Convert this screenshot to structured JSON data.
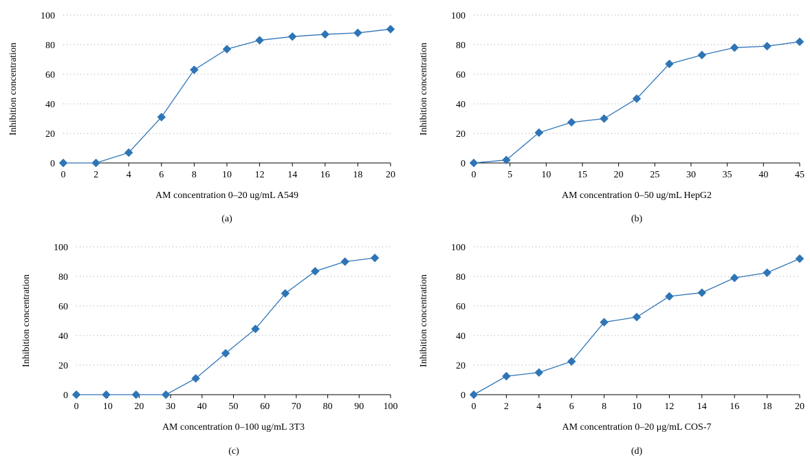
{
  "chart_data": [
    {
      "type": "line",
      "panel_label": "(a)",
      "xlabel": "AM concentration 0–20 ug/mL A549",
      "ylabel": "Inhibition concentration",
      "xlim": [
        0,
        20
      ],
      "ylim": [
        0,
        100
      ],
      "xticks": [
        "0",
        "2",
        "4",
        "6",
        "8",
        "10",
        "12",
        "14",
        "16",
        "18",
        "20"
      ],
      "yticks": [
        "0",
        "20",
        "40",
        "60",
        "80",
        "100"
      ],
      "grid": true,
      "series_color": "#2e75b6",
      "x": [
        0,
        2,
        4,
        6,
        8,
        10,
        12,
        14,
        16,
        18,
        20
      ],
      "y": [
        0,
        0,
        7,
        31,
        63,
        77,
        83,
        85.5,
        87,
        88,
        90.5
      ]
    },
    {
      "type": "line",
      "panel_label": "(b)",
      "xlabel": "AM concentration 0–50 ug/mL HepG2",
      "ylabel": "Inhibition concentration",
      "xlim": [
        0,
        45
      ],
      "ylim": [
        0,
        100
      ],
      "xticks": [
        "0",
        "5",
        "10",
        "15",
        "20",
        "25",
        "30",
        "35",
        "40",
        "45"
      ],
      "yticks": [
        "0",
        "20",
        "40",
        "60",
        "80",
        "100"
      ],
      "grid": true,
      "series_color": "#2e75b6",
      "x": [
        0,
        4.5,
        9,
        13.5,
        18,
        22.5,
        27,
        31.5,
        36,
        40.5,
        45
      ],
      "y": [
        0,
        2,
        20.5,
        27.5,
        30,
        43.5,
        67,
        73,
        78,
        79,
        82
      ]
    },
    {
      "type": "line",
      "panel_label": "(c)",
      "xlabel": "AM concentration 0–100 ug/mL 3T3",
      "ylabel": "Inhibition concentration",
      "xlim": [
        0,
        100
      ],
      "ylim": [
        0,
        100
      ],
      "xticks": [
        "0",
        "10",
        "20",
        "30",
        "40",
        "50",
        "60",
        "70",
        "80",
        "90",
        "100"
      ],
      "yticks": [
        "0",
        "20",
        "40",
        "60",
        "80",
        "100"
      ],
      "grid": true,
      "series_color": "#2e75b6",
      "x": [
        0,
        9.5,
        19,
        28.5,
        38,
        47.5,
        57,
        66.5,
        76,
        85.5,
        95
      ],
      "y": [
        0,
        0,
        0,
        0,
        11,
        28,
        44.5,
        68.5,
        83.5,
        90,
        92.5
      ]
    },
    {
      "type": "line",
      "panel_label": "(d)",
      "xlabel": "AM concentration 0–20 μg/mL COS-7",
      "ylabel": "Inhibition concentration",
      "xlim": [
        0,
        20
      ],
      "ylim": [
        0,
        100
      ],
      "xticks": [
        "0",
        "2",
        "4",
        "6",
        "8",
        "10",
        "12",
        "14",
        "16",
        "18",
        "20"
      ],
      "yticks": [
        "0",
        "20",
        "40",
        "60",
        "80",
        "100"
      ],
      "grid": true,
      "series_color": "#2e75b6",
      "x": [
        0,
        2,
        4,
        6,
        8,
        10,
        12,
        14,
        16,
        18,
        20
      ],
      "y": [
        0,
        12.5,
        15,
        22.5,
        49,
        52.5,
        66.5,
        69,
        79,
        82.5,
        92
      ]
    }
  ]
}
